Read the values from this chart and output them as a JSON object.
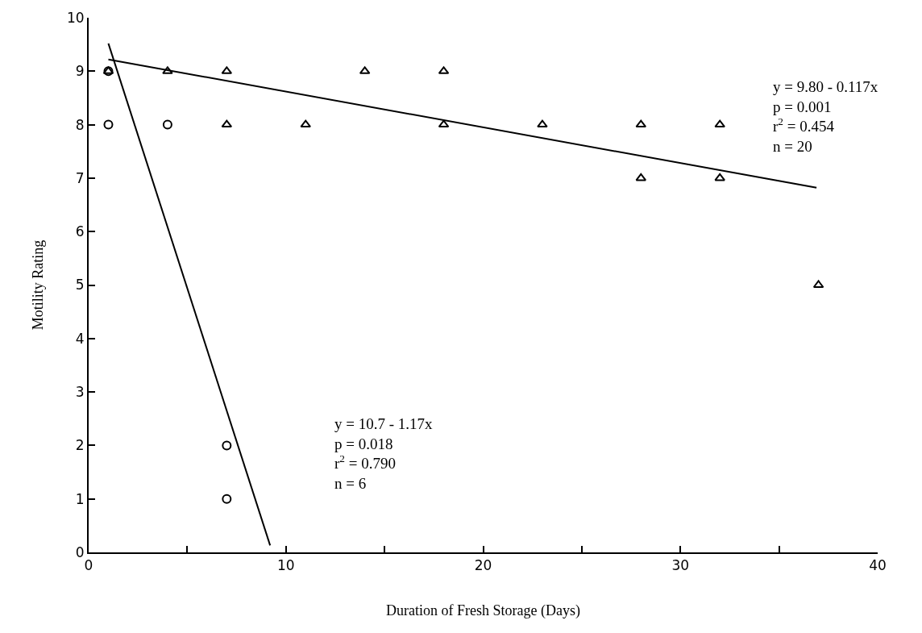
{
  "chart_data": {
    "type": "scatter",
    "xlabel": "Duration of Fresh Storage (Days)",
    "ylabel": "Motility Rating",
    "xlim": [
      0,
      40
    ],
    "xticks": [
      0,
      {
        "value": 5,
        "label": null
      },
      10,
      {
        "value": 15,
        "label": null
      },
      20,
      {
        "value": 25,
        "label": null
      },
      30,
      {
        "value": 35,
        "label": null
      },
      40
    ],
    "ylim": [
      0,
      10
    ],
    "yticks": [
      0,
      1,
      2,
      3,
      4,
      5,
      6,
      7,
      8,
      9,
      10
    ],
    "series": [
      {
        "marker": "triangle",
        "color": "#000000",
        "x": [
          4,
          7,
          7,
          11,
          14,
          18,
          18,
          23,
          28,
          28,
          32,
          32,
          37,
          1
        ],
        "values": [
          9,
          9,
          8,
          8,
          9,
          9,
          8,
          8,
          8,
          7,
          8,
          7,
          5,
          9
        ]
      },
      {
        "marker": "circle",
        "color": "#000000",
        "x": [
          1,
          4,
          7,
          7,
          1
        ],
        "values": [
          8,
          8,
          2,
          1,
          9
        ]
      },
      {
        "type": "line",
        "marker": "none",
        "line_style": "solid",
        "color": "#000000",
        "x": [
          1,
          36.9
        ],
        "values": [
          9.22,
          6.82
        ]
      },
      {
        "type": "line",
        "marker": "none",
        "line_style": "solid",
        "color": "#000000",
        "x": [
          1,
          9.2
        ],
        "values": [
          9.52,
          0.13
        ]
      }
    ],
    "annotations": [
      "y = 9.80 - 0.117x\np = 0.001\nr$^{2}$ = 0.454\nn = 20",
      "y = 10.7 - 1.17x\np = 0.018\nr$^{2}$ = 0.790\nn = 6"
    ]
  }
}
